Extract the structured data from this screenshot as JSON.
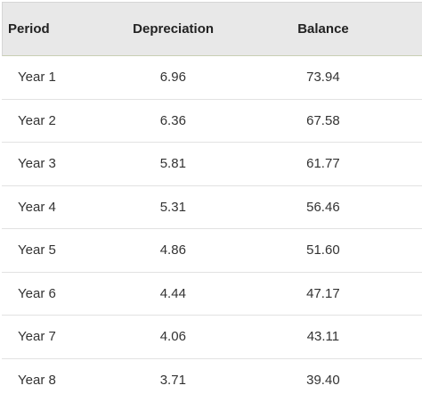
{
  "table": {
    "columns": [
      "Period",
      "Depreciation",
      "Balance"
    ],
    "rows": [
      [
        "Year 1",
        "6.96",
        "73.94"
      ],
      [
        "Year 2",
        "6.36",
        "67.58"
      ],
      [
        "Year 3",
        "5.81",
        "61.77"
      ],
      [
        "Year 4",
        "5.31",
        "56.46"
      ],
      [
        "Year 5",
        "4.86",
        "51.60"
      ],
      [
        "Year 6",
        "4.44",
        "47.17"
      ],
      [
        "Year 7",
        "4.06",
        "43.11"
      ],
      [
        "Year 8",
        "3.71",
        "39.40"
      ]
    ]
  }
}
